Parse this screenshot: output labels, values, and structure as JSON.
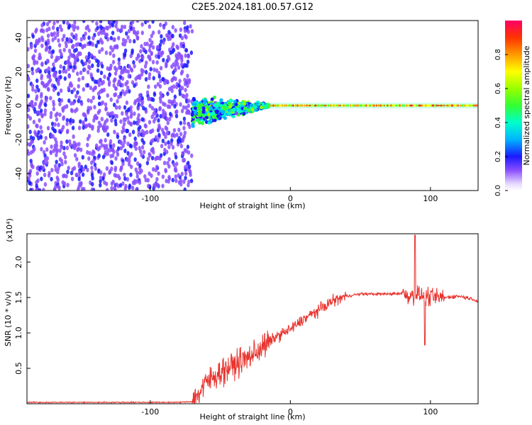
{
  "title": "C2E5.2024.181.00.57.G12",
  "chart_data": [
    {
      "type": "heatmap",
      "xlabel": "Height of straight line (km)",
      "ylabel": "Frequency (Hz)",
      "xlim": [
        -188,
        134
      ],
      "ylim": [
        -50,
        50
      ],
      "x_ticks": [
        -100,
        0,
        100
      ],
      "y_ticks": [
        -40,
        -20,
        0,
        20,
        40
      ],
      "colorbar": {
        "label": "Normalized spectral amplitude",
        "range": [
          0,
          1
        ],
        "ticks": [
          0.0,
          0.2,
          0.4,
          0.6,
          0.8
        ]
      },
      "regions": [
        {
          "x_range": [
            -188,
            -70
          ],
          "description_level": 0.12,
          "spread_hz": 50
        },
        {
          "x_range": [
            -70,
            -15
          ],
          "description_level": 0.35,
          "spread_hz": 10
        },
        {
          "x_range": [
            -15,
            134
          ],
          "description_level": 0.8,
          "spread_hz": 1
        }
      ]
    },
    {
      "type": "line",
      "xlabel": "Height of straight line (km)",
      "ylabel": "SNR (10 * v/v)",
      "multiplier": "(x10⁴)",
      "xlim": [
        -188,
        134
      ],
      "ylim": [
        0,
        2.4
      ],
      "x_ticks": [
        -100,
        0,
        100
      ],
      "y_ticks": [
        0.5,
        1.0,
        1.5,
        2.0
      ],
      "series": [
        {
          "color": "#e8332e",
          "x": [
            -188,
            -150,
            -100,
            -80,
            -70,
            -65,
            -60,
            -50,
            -40,
            -30,
            -20,
            -10,
            0,
            10,
            20,
            30,
            40,
            50,
            60,
            70,
            80,
            85,
            90,
            95,
            100,
            110,
            120,
            130,
            134
          ],
          "values": [
            0.02,
            0.02,
            0.02,
            0.02,
            0.03,
            0.15,
            0.3,
            0.45,
            0.55,
            0.65,
            0.8,
            0.95,
            1.05,
            1.2,
            1.32,
            1.45,
            1.52,
            1.55,
            1.55,
            1.55,
            1.56,
            1.52,
            1.55,
            1.52,
            1.5,
            1.5,
            1.52,
            1.48,
            1.45
          ]
        }
      ]
    }
  ]
}
